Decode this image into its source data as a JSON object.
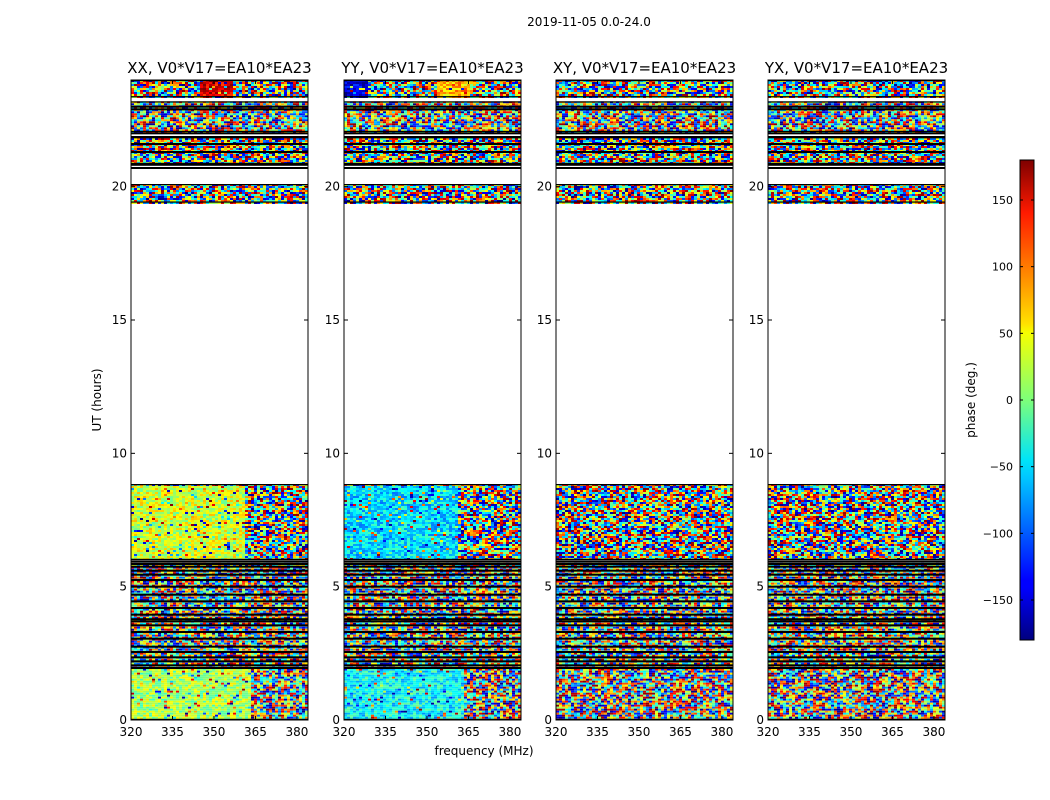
{
  "figure": {
    "suptitle": "2019-11-05 0.0-24.0",
    "xlabel": "frequency (MHz)",
    "ylabel": "UT (hours)",
    "colorbar_label": "phase (deg.)"
  },
  "colors": {
    "background": "#ffffff",
    "axes": "#000000",
    "colormap": "jet"
  },
  "chart_data": {
    "type": "heatmap",
    "x_ticks": [
      "320",
      "335",
      "350",
      "365",
      "380"
    ],
    "y_ticks": [
      "0",
      "5",
      "10",
      "15",
      "20"
    ],
    "xlim": [
      320,
      384
    ],
    "ylim": [
      0,
      24
    ],
    "colorbar": {
      "range": [
        -180,
        180
      ],
      "ticks": [
        "150",
        "100",
        "50",
        "0",
        "−50",
        "−100",
        "−150"
      ],
      "tick_values": [
        150,
        100,
        50,
        0,
        -50,
        -100,
        -150
      ]
    },
    "black_band_hours": [
      1.95,
      2.05,
      2.2,
      2.35,
      2.55,
      2.75,
      3.05,
      3.3,
      3.55,
      3.7,
      3.78,
      3.95,
      4.2,
      4.45,
      4.7,
      5.0,
      5.25,
      5.45,
      5.6,
      5.75,
      5.85,
      5.95,
      20.7,
      20.82,
      21.3,
      21.6,
      21.85,
      22.0,
      22.9,
      23.0
    ],
    "panels": [
      {
        "title": "XX, V0*V17=EA10*EA23",
        "data_segments_hours": [
          [
            0,
            5.9
          ],
          [
            6.0,
            8.85
          ],
          [
            19.4,
            20.1
          ],
          [
            20.85,
            21.9
          ],
          [
            22.05,
            23.2
          ],
          [
            23.35,
            24.0
          ]
        ],
        "region_phase_deg": [
          {
            "hours": [
              0.0,
              1.95
            ],
            "freq_mhz": [
              320,
              363
            ],
            "phase_deg": 15
          },
          {
            "hours": [
              6.0,
              8.85
            ],
            "freq_mhz": [
              320,
              361
            ],
            "phase_deg": 30
          },
          {
            "hours": [
              23.35,
              24.0
            ],
            "freq_mhz": [
              344,
              356
            ],
            "phase_deg": 150
          }
        ]
      },
      {
        "title": "YY, V0*V17=EA10*EA23",
        "data_segments_hours": [
          [
            0,
            5.9
          ],
          [
            6.0,
            8.85
          ],
          [
            19.4,
            20.1
          ],
          [
            20.85,
            21.9
          ],
          [
            22.05,
            23.2
          ],
          [
            23.35,
            24.0
          ]
        ],
        "region_phase_deg": [
          {
            "hours": [
              0.0,
              1.95
            ],
            "freq_mhz": [
              320,
              363
            ],
            "phase_deg": -45
          },
          {
            "hours": [
              6.0,
              8.85
            ],
            "freq_mhz": [
              320,
              361
            ],
            "phase_deg": -55
          },
          {
            "hours": [
              23.35,
              24.0
            ],
            "freq_mhz": [
              320,
              328
            ],
            "phase_deg": -150
          },
          {
            "hours": [
              23.35,
              24.0
            ],
            "freq_mhz": [
              353,
              365
            ],
            "phase_deg": 70
          }
        ]
      },
      {
        "title": "XY, V0*V17=EA10*EA23",
        "data_segments_hours": [
          [
            0,
            5.9
          ],
          [
            6.0,
            8.85
          ],
          [
            19.4,
            20.1
          ],
          [
            20.85,
            21.9
          ],
          [
            22.05,
            23.2
          ],
          [
            23.35,
            24.0
          ]
        ],
        "region_phase_deg": []
      },
      {
        "title": "YX, V0*V17=EA10*EA23",
        "data_segments_hours": [
          [
            0,
            5.9
          ],
          [
            6.0,
            8.85
          ],
          [
            19.4,
            20.1
          ],
          [
            20.85,
            21.9
          ],
          [
            22.05,
            23.2
          ],
          [
            23.35,
            24.0
          ]
        ],
        "region_phase_deg": []
      }
    ]
  }
}
